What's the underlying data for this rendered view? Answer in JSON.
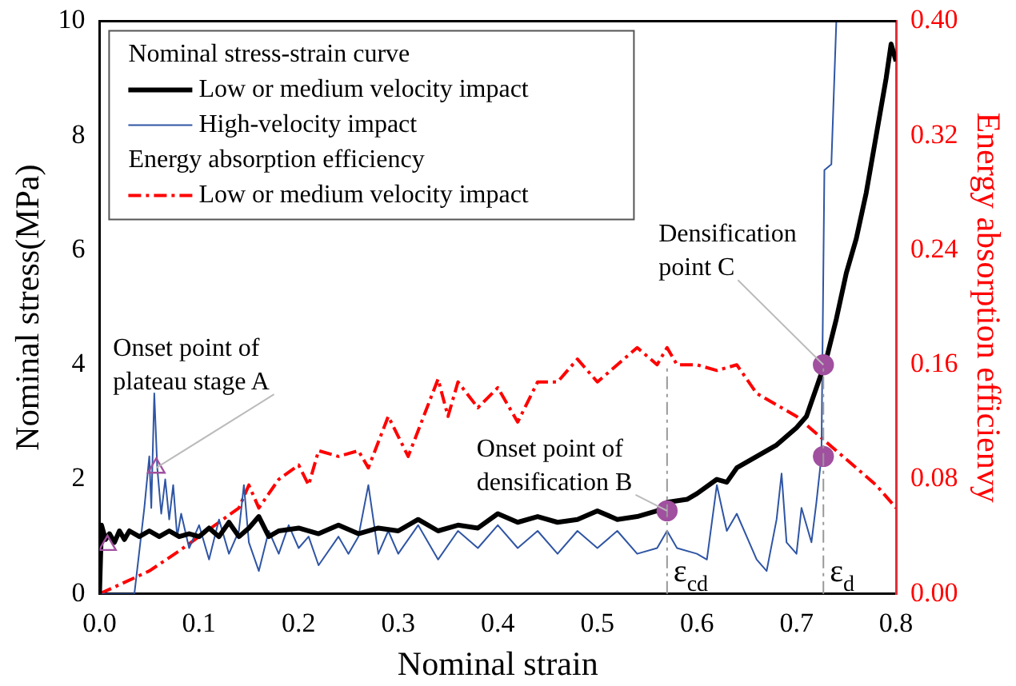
{
  "chart_data": {
    "type": "line",
    "xlabel": "Nominal strain",
    "ylabel": "Nominal stress(MPa)",
    "y2label": "Energy absorption efficienvy",
    "xlim": [
      0,
      0.8
    ],
    "xticks": [
      {
        "value": 0,
        "label": "0.0"
      },
      0.1,
      0.2,
      0.3,
      0.4,
      0.5,
      0.6,
      0.7,
      0.8
    ],
    "ylim": [
      0,
      10
    ],
    "yticks": [
      0,
      2,
      4,
      6,
      8,
      10
    ],
    "y2lim": [
      0,
      0.4
    ],
    "y2ticks": [
      {
        "value": 0,
        "label": "0.00"
      },
      0.08,
      0.16,
      0.24,
      0.32,
      {
        "value": 0.4,
        "label": "0.40"
      }
    ],
    "grid": false,
    "legend": "top left",
    "marker": "none",
    "series": [
      {
        "name": "Low or medium velocity impact",
        "color": "#000000",
        "x": [
          0,
          0.002,
          0.006,
          0.01,
          0.015,
          0.02,
          0.025,
          0.03,
          0.04,
          0.05,
          0.06,
          0.07,
          0.08,
          0.09,
          0.1,
          0.11,
          0.12,
          0.13,
          0.14,
          0.15,
          0.16,
          0.17,
          0.18,
          0.2,
          0.22,
          0.24,
          0.26,
          0.28,
          0.3,
          0.32,
          0.34,
          0.36,
          0.38,
          0.4,
          0.42,
          0.44,
          0.46,
          0.48,
          0.5,
          0.52,
          0.54,
          0.56,
          0.57,
          0.59,
          0.6,
          0.62,
          0.63,
          0.64,
          0.66,
          0.68,
          0.7,
          0.71,
          0.72,
          0.73,
          0.74,
          0.75,
          0.76,
          0.77,
          0.78,
          0.79,
          0.795,
          0.8
        ],
        "values": [
          0,
          1.2,
          0.95,
          1.05,
          0.9,
          1.1,
          0.95,
          1.1,
          1.0,
          1.1,
          1.0,
          1.1,
          1.0,
          1.05,
          1.0,
          1.15,
          1.0,
          1.25,
          1.0,
          1.15,
          1.35,
          1.0,
          1.1,
          1.15,
          1.05,
          1.2,
          1.05,
          1.15,
          1.1,
          1.3,
          1.1,
          1.2,
          1.15,
          1.4,
          1.25,
          1.35,
          1.25,
          1.3,
          1.45,
          1.3,
          1.35,
          1.45,
          1.6,
          1.65,
          1.75,
          2.0,
          1.95,
          2.2,
          2.4,
          2.6,
          2.9,
          3.1,
          3.6,
          4.1,
          4.8,
          5.6,
          6.2,
          7.0,
          8.0,
          9.0,
          9.6,
          9.3
        ]
      },
      {
        "name": "High-velocity impact",
        "color": "#2f55a4",
        "x": [
          0,
          0.035,
          0.045,
          0.05,
          0.052,
          0.055,
          0.058,
          0.062,
          0.066,
          0.07,
          0.074,
          0.078,
          0.082,
          0.09,
          0.1,
          0.11,
          0.12,
          0.13,
          0.14,
          0.145,
          0.15,
          0.16,
          0.17,
          0.18,
          0.19,
          0.2,
          0.21,
          0.22,
          0.24,
          0.25,
          0.26,
          0.27,
          0.28,
          0.29,
          0.3,
          0.32,
          0.34,
          0.36,
          0.38,
          0.4,
          0.42,
          0.44,
          0.46,
          0.48,
          0.5,
          0.52,
          0.54,
          0.56,
          0.57,
          0.58,
          0.6,
          0.61,
          0.62,
          0.63,
          0.64,
          0.65,
          0.66,
          0.67,
          0.68,
          0.685,
          0.69,
          0.7,
          0.705,
          0.71,
          0.715,
          0.72,
          0.725,
          0.728,
          0.735,
          0.74
        ],
        "values": [
          0,
          0,
          1.5,
          2.4,
          1.5,
          3.5,
          2.2,
          1.4,
          2.0,
          1.3,
          1.9,
          1.0,
          1.4,
          0.8,
          1.2,
          0.6,
          1.3,
          0.7,
          1.1,
          1.9,
          0.9,
          0.4,
          1.1,
          0.7,
          1.2,
          0.8,
          1.0,
          0.5,
          1.0,
          0.7,
          1.0,
          1.9,
          0.7,
          1.1,
          0.7,
          1.2,
          0.6,
          1.1,
          0.8,
          1.2,
          0.8,
          1.1,
          0.7,
          1.1,
          0.8,
          1.1,
          0.7,
          0.8,
          1.1,
          0.8,
          0.7,
          0.6,
          1.9,
          1.1,
          1.4,
          1.0,
          0.6,
          0.4,
          1.3,
          2.1,
          0.9,
          0.7,
          1.5,
          1.2,
          0.9,
          1.6,
          2.4,
          7.4,
          7.5,
          10
        ]
      },
      {
        "name": "Low or medium velocity impact",
        "color": "#ff0000",
        "axis": "y2",
        "line_style": "dashed",
        "x": [
          0,
          0.05,
          0.08,
          0.1,
          0.12,
          0.14,
          0.15,
          0.16,
          0.18,
          0.2,
          0.21,
          0.22,
          0.24,
          0.26,
          0.27,
          0.29,
          0.3,
          0.31,
          0.33,
          0.34,
          0.35,
          0.36,
          0.38,
          0.4,
          0.42,
          0.44,
          0.46,
          0.48,
          0.5,
          0.52,
          0.54,
          0.56,
          0.57,
          0.58,
          0.6,
          0.62,
          0.64,
          0.66,
          0.68,
          0.7,
          0.72,
          0.74,
          0.76,
          0.78,
          0.8
        ],
        "values": [
          0,
          0.016,
          0.03,
          0.04,
          0.05,
          0.06,
          0.076,
          0.06,
          0.08,
          0.09,
          0.076,
          0.1,
          0.096,
          0.1,
          0.088,
          0.124,
          0.11,
          0.096,
          0.132,
          0.15,
          0.124,
          0.148,
          0.13,
          0.144,
          0.12,
          0.148,
          0.148,
          0.164,
          0.148,
          0.16,
          0.172,
          0.16,
          0.172,
          0.16,
          0.16,
          0.156,
          0.16,
          0.14,
          0.132,
          0.124,
          0.112,
          0.1,
          0.088,
          0.076,
          0.06
        ]
      },
      {
        "type": "scatter",
        "marker": "triangle",
        "color": "#a0509f",
        "x": [
          0.008,
          0.057
        ],
        "values": [
          0.85,
          2.2
        ]
      },
      {
        "type": "scatter",
        "marker": "circle",
        "color": "#a0509f",
        "x": [
          0.57
        ],
        "values": [
          1.45
        ]
      },
      {
        "type": "scatter",
        "marker": "circle",
        "color": "#a0509f",
        "x": [
          0.727,
          0.727
        ],
        "values": [
          4.0,
          2.4
        ]
      }
    ],
    "ref_lines": [
      {
        "axis": "x",
        "value": 0.57,
        "label": "ε$_{cd}$",
        "color": "#999999",
        "line_style": "dashed"
      },
      {
        "axis": "x",
        "value": 0.727,
        "label": "ε$_{d}$",
        "color": "#999999",
        "line_style": "dashed"
      }
    ],
    "annotations": [
      "Nominal stress-strain curve",
      "Energy absorption efficiency",
      {
        "text": "Onset point of plateau stage A",
        "x": 0.057,
        "y": 2.2
      },
      {
        "text": "Onset point of densification B",
        "x": 0.57,
        "y": 1.45
      },
      {
        "text": "Densification point C",
        "x": 0.727,
        "y": 4.0
      }
    ]
  }
}
